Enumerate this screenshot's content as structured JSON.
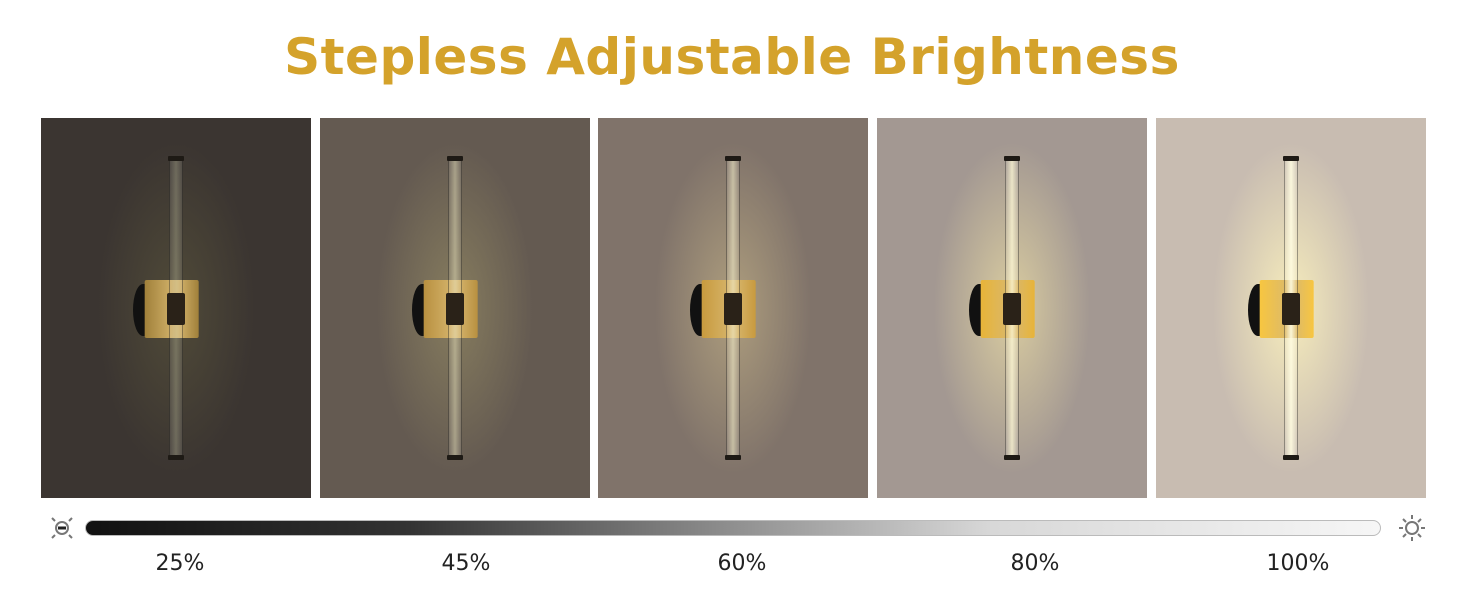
{
  "title": "Stepless Adjustable Brightness",
  "colors": {
    "title": "#d4a22b"
  },
  "panels": [
    {
      "brightness_percent": 25,
      "label": "25%",
      "bg": "#3b3531",
      "glow": "rgba(120,115,70,0.35)",
      "rod": "rgba(200,200,170,0.35)",
      "plate": "#a0803a"
    },
    {
      "brightness_percent": 45,
      "label": "45%",
      "bg": "#645a51",
      "glow": "rgba(200,190,120,0.35)",
      "rod": "rgba(230,225,190,0.5)",
      "plate": "#b89040"
    },
    {
      "brightness_percent": 60,
      "label": "60%",
      "bg": "#80736a",
      "glow": "rgba(230,210,150,0.45)",
      "rod": "rgba(240,235,200,0.6)",
      "plate": "#c89a3e"
    },
    {
      "brightness_percent": 80,
      "label": "80%",
      "bg": "#a39892",
      "glow": "rgba(255,240,170,0.6)",
      "rod": "rgba(255,250,215,0.75)",
      "plate": "#e8b438"
    },
    {
      "brightness_percent": 100,
      "label": "100%",
      "bg": "#c8bcb1",
      "glow": "rgba(255,245,190,0.85)",
      "rod": "rgba(255,252,225,0.9)",
      "plate": "#f8c640"
    }
  ],
  "slider": {
    "min_icon": "dim-brightness-icon",
    "max_icon": "bright-sun-icon"
  }
}
